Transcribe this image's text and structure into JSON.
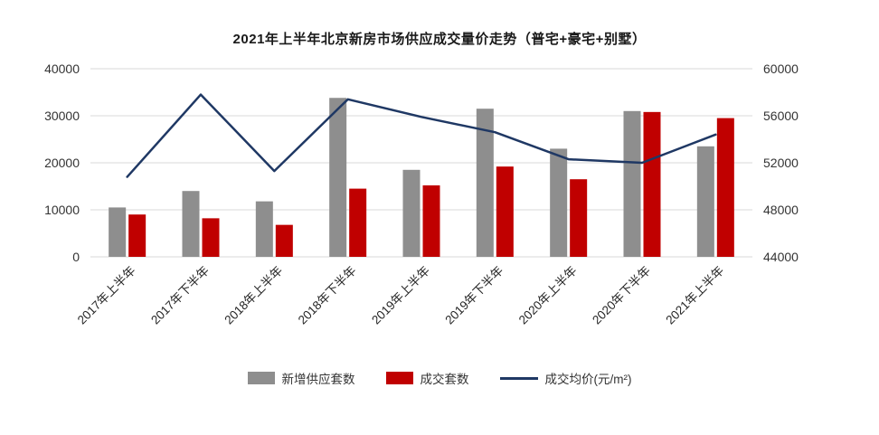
{
  "chart_data": {
    "type": "bar",
    "subtype": "combo-bar-line",
    "title": "2021年上半年北京新房市场供应成交量价走势（普宅+豪宅+别墅）",
    "categories": [
      "2017年上半年",
      "2017年下半年",
      "2018年上半年",
      "2018年下半年",
      "2019年上半年",
      "2019年下半年",
      "2020年上半年",
      "2020年下半年",
      "2021年上半年"
    ],
    "bar_series": [
      {
        "name": "新增供应套数",
        "color": "#8e8e8e",
        "axis": "left",
        "values": [
          10500,
          14000,
          11800,
          33800,
          18500,
          31500,
          23000,
          31000,
          23500
        ]
      },
      {
        "name": "成交套数",
        "color": "#c00000",
        "axis": "left",
        "values": [
          9000,
          8200,
          6800,
          14500,
          15200,
          19200,
          16500,
          30800,
          29500
        ]
      }
    ],
    "line_series": [
      {
        "name": "成交均价(元/m²)",
        "color": "#1f3864",
        "axis": "right",
        "values": [
          50800,
          57800,
          51300,
          57400,
          55900,
          54600,
          52300,
          52000,
          54400
        ]
      }
    ],
    "left_axis": {
      "min": 0,
      "max": 40000,
      "ticks": [
        0,
        10000,
        20000,
        30000,
        40000
      ]
    },
    "right_axis": {
      "min": 44000,
      "max": 60000,
      "ticks": [
        44000,
        48000,
        52000,
        56000,
        60000
      ]
    },
    "grid": true,
    "gridline_color": "#d9d9d9",
    "legend_position": "bottom",
    "xlabel": "",
    "ylabel_left": "",
    "ylabel_right": ""
  }
}
